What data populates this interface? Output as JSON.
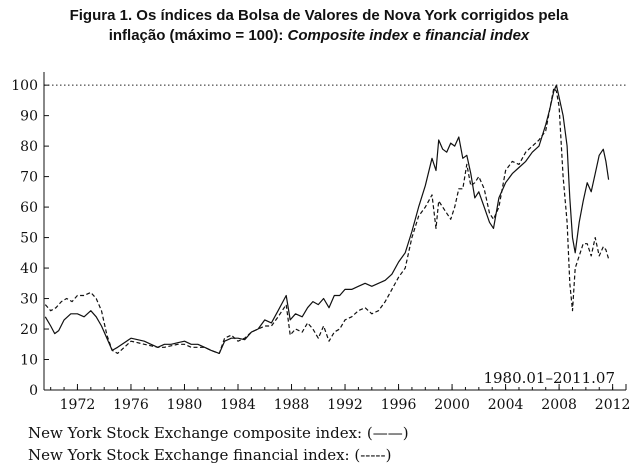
{
  "title": {
    "line1": "Figura 1. Os índices da Bolsa de Valores de Nova York corrigidos pela",
    "line2_plain": "inflação (máximo = 100):",
    "line2_italic1": "Composite index",
    "line2_mid": "e",
    "line2_italic2": "financial index"
  },
  "legend": {
    "composite": "New York Stock Exchange composite index: (——)",
    "financial": "New York Stock Exchange financial index: (-----)"
  },
  "chart_data": {
    "type": "line",
    "annotation": "1980.01–2011.07",
    "xlim": [
      1969.5,
      2013
    ],
    "ylim": [
      0,
      103
    ],
    "x_ticks": [
      1972,
      1976,
      1980,
      1984,
      1988,
      1992,
      1996,
      2000,
      2004,
      2008,
      2012
    ],
    "y_ticks": [
      0,
      10,
      20,
      30,
      40,
      50,
      60,
      70,
      80,
      90,
      100
    ],
    "reference_line": 100,
    "grid": false,
    "series": [
      {
        "name": "New York Stock Exchange composite index",
        "style": "solid",
        "x": [
          1969.6,
          1970.0,
          1970.3,
          1970.6,
          1971.0,
          1971.5,
          1972.0,
          1972.5,
          1973.0,
          1973.4,
          1973.8,
          1974.2,
          1974.6,
          1975.0,
          1975.5,
          1976.0,
          1976.5,
          1977.0,
          1977.5,
          1978.0,
          1978.5,
          1979.0,
          1979.5,
          1980.0,
          1980.5,
          1981.0,
          1981.5,
          1982.0,
          1982.6,
          1983.0,
          1983.5,
          1984.0,
          1984.5,
          1985.0,
          1985.5,
          1986.0,
          1986.5,
          1987.0,
          1987.6,
          1987.9,
          1988.3,
          1988.8,
          1989.2,
          1989.6,
          1990.0,
          1990.4,
          1990.8,
          1991.2,
          1991.6,
          1992.0,
          1992.5,
          1993.0,
          1993.5,
          1994.0,
          1994.5,
          1995.0,
          1995.5,
          1996.0,
          1996.5,
          1997.0,
          1997.5,
          1998.0,
          1998.5,
          1998.8,
          1999.0,
          1999.3,
          1999.6,
          1999.9,
          2000.2,
          2000.5,
          2000.8,
          2001.1,
          2001.4,
          2001.7,
          2002.0,
          2002.4,
          2002.8,
          2003.1,
          2003.5,
          2004.0,
          2004.5,
          2005.0,
          2005.5,
          2006.0,
          2006.5,
          2007.0,
          2007.3,
          2007.6,
          2007.8,
          2008.0,
          2008.3,
          2008.6,
          2008.8,
          2009.0,
          2009.2,
          2009.5,
          2009.8,
          2010.1,
          2010.4,
          2010.7,
          2011.0,
          2011.3,
          2011.5,
          2011.7
        ],
        "y": [
          24,
          21,
          18.5,
          19.5,
          23,
          25,
          25,
          24,
          26,
          24,
          21,
          17,
          13,
          14,
          15.5,
          17,
          16.5,
          16,
          15,
          14,
          15,
          15,
          15.5,
          16,
          15,
          15,
          14,
          13,
          12,
          16,
          17,
          17,
          16.5,
          19,
          20,
          23,
          22,
          26,
          31,
          23,
          25,
          24,
          27,
          29,
          28,
          30,
          27,
          31,
          31,
          33,
          33,
          34,
          35,
          34,
          35,
          36,
          38,
          42,
          45,
          52,
          60,
          67,
          76,
          72,
          82,
          79,
          78,
          81,
          80,
          83,
          76,
          77,
          71,
          63,
          65,
          60,
          55,
          53,
          63,
          68,
          71,
          73,
          75,
          78,
          80,
          87,
          92,
          98,
          100,
          96,
          90,
          80,
          63,
          50,
          45,
          55,
          62,
          68,
          65,
          71,
          77,
          79,
          75,
          69
        ]
      },
      {
        "name": "New York Stock Exchange financial index",
        "style": "dashed",
        "x": [
          1969.6,
          1970.0,
          1970.4,
          1970.8,
          1971.2,
          1971.6,
          1972.0,
          1972.5,
          1973.0,
          1973.4,
          1973.8,
          1974.2,
          1974.6,
          1975.0,
          1975.5,
          1976.0,
          1976.5,
          1977.0,
          1977.5,
          1978.0,
          1978.5,
          1979.0,
          1979.5,
          1980.0,
          1980.5,
          1981.0,
          1981.5,
          1982.0,
          1982.6,
          1983.0,
          1983.5,
          1984.0,
          1984.5,
          1985.0,
          1985.5,
          1986.0,
          1986.5,
          1987.0,
          1987.6,
          1987.9,
          1988.3,
          1988.8,
          1989.2,
          1989.6,
          1990.0,
          1990.4,
          1990.8,
          1991.2,
          1991.6,
          1992.0,
          1992.5,
          1993.0,
          1993.5,
          1994.0,
          1994.5,
          1995.0,
          1995.5,
          1996.0,
          1996.5,
          1997.0,
          1997.5,
          1998.0,
          1998.5,
          1998.8,
          1999.0,
          1999.3,
          1999.6,
          1999.9,
          2000.2,
          2000.5,
          2000.8,
          2001.1,
          2001.4,
          2001.7,
          2002.0,
          2002.4,
          2002.8,
          2003.1,
          2003.5,
          2004.0,
          2004.5,
          2005.0,
          2005.5,
          2006.0,
          2006.5,
          2007.0,
          2007.3,
          2007.6,
          2007.8,
          2008.0,
          2008.3,
          2008.6,
          2008.8,
          2009.0,
          2009.2,
          2009.5,
          2009.8,
          2010.1,
          2010.4,
          2010.7,
          2011.0,
          2011.3,
          2011.5,
          2011.7
        ],
        "y": [
          28,
          26,
          27,
          29,
          30,
          29,
          31,
          31,
          32,
          30,
          26,
          18,
          13,
          12,
          14,
          16,
          15.5,
          15,
          14.5,
          14,
          14,
          14.5,
          15,
          15,
          14,
          14,
          14,
          13,
          12,
          17,
          18,
          16,
          17,
          19,
          20,
          21,
          21,
          24,
          28,
          18,
          20,
          19,
          22,
          20,
          17,
          21,
          16,
          19,
          20,
          23,
          24,
          26,
          27,
          25,
          26,
          29,
          33,
          37,
          40,
          50,
          57,
          60,
          64,
          53,
          62,
          60,
          58,
          56,
          60,
          66,
          66,
          74,
          67,
          68,
          70,
          66,
          58,
          56,
          60,
          72,
          75,
          74,
          78,
          80,
          82,
          85,
          92,
          99,
          98,
          93,
          70,
          55,
          35,
          26,
          40,
          44,
          48,
          48,
          44,
          50,
          44,
          47,
          46,
          43
        ]
      }
    ]
  }
}
